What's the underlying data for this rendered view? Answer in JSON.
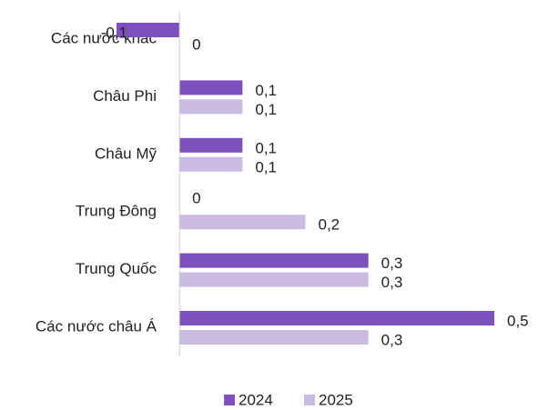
{
  "chart_data": {
    "type": "bar",
    "orientation": "horizontal",
    "categories": [
      "Các nước khác",
      "Châu Phi",
      "Châu Mỹ",
      "Trung Đông",
      "Trung Quốc",
      "Các nước châu Á"
    ],
    "series": [
      {
        "name": "2024",
        "color": "#7d50bd",
        "values": [
          -0.1,
          0.1,
          0.1,
          0,
          0.3,
          0.5
        ],
        "value_labels": [
          "-0,1",
          "0,1",
          "0,1",
          "0",
          "0,3",
          "0,5"
        ]
      },
      {
        "name": "2025",
        "color": "#cbbbe2",
        "values": [
          0,
          0.1,
          0.1,
          0.2,
          0.3,
          0.3
        ],
        "value_labels": [
          "0",
          "0,1",
          "0,1",
          "0,2",
          "0,3",
          "0,3"
        ]
      }
    ],
    "xlim": [
      -0.1,
      0.5
    ],
    "legend": "bottom"
  }
}
